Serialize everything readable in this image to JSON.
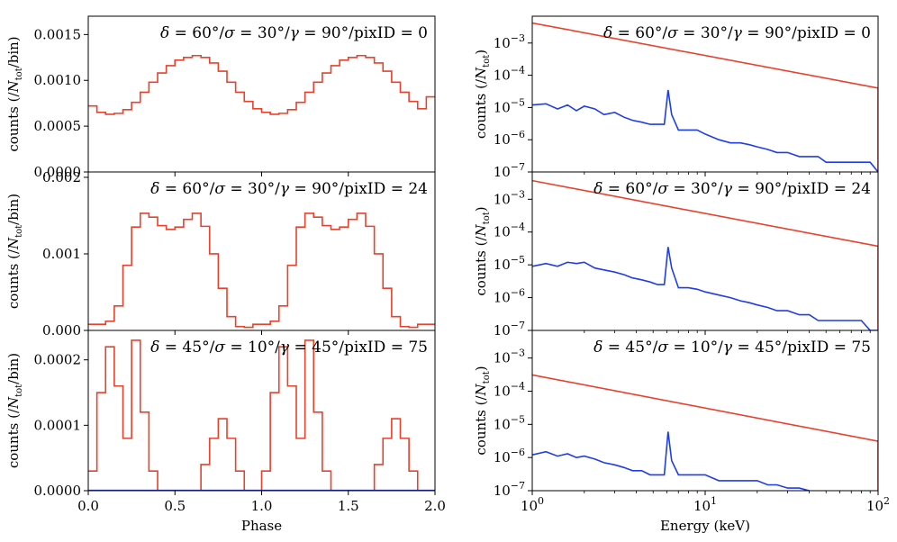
{
  "chart_data": [
    {
      "type": "line",
      "panel": "light-curve-1",
      "title": "δ = 60°/σ = 30°/γ = 90°/pixID = 0",
      "xlabel": "",
      "ylabel": "counts (/N_tot/bin)",
      "ylabel_parts": [
        "counts (/",
        "N",
        "tot",
        "/bin)"
      ],
      "xlim": [
        0.0,
        2.0
      ],
      "ylim": [
        0.0,
        0.0017
      ],
      "yticks": [
        0.0,
        0.0005,
        0.001,
        0.0015
      ],
      "yticklabels": [
        "0.0000",
        "0.0005",
        "0.0010",
        "0.0015"
      ],
      "step": true,
      "series": [
        {
          "color": "#e8412c",
          "values": [
            0.00072,
            0.00065,
            0.00063,
            0.00064,
            0.00068,
            0.00076,
            0.00087,
            0.00098,
            0.00108,
            0.00116,
            0.00122,
            0.00125,
            0.00127,
            0.00125,
            0.00119,
            0.0011,
            0.00098,
            0.00087,
            0.00077,
            0.00069,
            0.00065,
            0.00063,
            0.00064,
            0.00068,
            0.00076,
            0.00087,
            0.00098,
            0.00108,
            0.00116,
            0.00122,
            0.00125,
            0.00127,
            0.00125,
            0.00119,
            0.0011,
            0.00098,
            0.00087,
            0.00077,
            0.00069,
            0.00082
          ]
        }
      ]
    },
    {
      "type": "line",
      "panel": "light-curve-2",
      "title": "δ = 60°/σ = 30°/γ = 90°/pixID = 24",
      "xlabel": "",
      "ylabel": "counts (/N_tot/bin)",
      "ylabel_parts": [
        "counts (/",
        "N",
        "tot",
        "/bin)"
      ],
      "xlim": [
        0.0,
        2.0
      ],
      "ylim": [
        0.0,
        0.00207
      ],
      "yticks": [
        0.0,
        0.001,
        0.002
      ],
      "yticklabels": [
        "0.000",
        "0.001",
        "0.002"
      ],
      "step": true,
      "series": [
        {
          "color": "#e8412c",
          "values": [
            8e-05,
            8e-05,
            0.00012,
            0.00032,
            0.00085,
            0.00135,
            0.00153,
            0.00148,
            0.00137,
            0.00132,
            0.00135,
            0.00145,
            0.00153,
            0.00136,
            0.001,
            0.00055,
            0.00018,
            5e-05,
            4e-05,
            8e-05,
            8e-05,
            0.00012,
            0.00032,
            0.00085,
            0.00135,
            0.00153,
            0.00148,
            0.00137,
            0.00132,
            0.00135,
            0.00145,
            0.00153,
            0.00136,
            0.001,
            0.00055,
            0.00018,
            5e-05,
            4e-05,
            8e-05,
            8e-05
          ]
        }
      ]
    },
    {
      "type": "line",
      "panel": "light-curve-3",
      "title": "δ = 45°/σ = 10°/γ = 45°/pixID = 75",
      "xlabel": "Phase",
      "ylabel": "counts (/N_tot/bin)",
      "ylabel_parts": [
        "counts (/",
        "N",
        "tot",
        "/bin)"
      ],
      "xlim": [
        0.0,
        2.0
      ],
      "ylim": [
        0.0,
        0.000245
      ],
      "xticks": [
        0.0,
        0.5,
        1.0,
        1.5,
        2.0
      ],
      "xticklabels": [
        "0.0",
        "0.5",
        "1.0",
        "1.5",
        "2.0"
      ],
      "yticks": [
        0.0,
        0.0001,
        0.0002
      ],
      "yticklabels": [
        "0.0000",
        "0.0001",
        "0.0002"
      ],
      "step": true,
      "series": [
        {
          "color": "#e8412c",
          "values": [
            3e-05,
            0.00015,
            0.00022,
            0.00016,
            8e-05,
            0.00023,
            0.00012,
            3e-05,
            0.0,
            0.0,
            0.0,
            0.0,
            0.0,
            4e-05,
            8e-05,
            0.00011,
            8e-05,
            3e-05,
            0.0,
            0.0,
            3e-05,
            0.00015,
            0.00022,
            0.00016,
            8e-05,
            0.00023,
            0.00012,
            3e-05,
            0.0,
            0.0,
            0.0,
            0.0,
            0.0,
            4e-05,
            8e-05,
            0.00011,
            8e-05,
            3e-05,
            0.0,
            0.0
          ]
        },
        {
          "color": "#1f3de8",
          "values": [
            5e-07,
            5e-07,
            5e-07,
            5e-07,
            5e-07
          ]
        }
      ]
    },
    {
      "type": "line",
      "panel": "spectrum-1",
      "title": "δ = 60°/σ = 30°/γ = 90°/pixID = 0",
      "xlabel": "",
      "ylabel": "counts (/N_tot)",
      "ylabel_parts": [
        "counts (/",
        "N",
        "tot",
        ")"
      ],
      "xscale": "log",
      "yscale": "log",
      "xlim": [
        1,
        100
      ],
      "ylim": [
        1e-07,
        0.0068
      ],
      "yticks": [
        1e-07,
        1e-06,
        1e-05,
        0.0001,
        0.001
      ],
      "yticklabels": [
        "10^-7",
        "10^-6",
        "10^-5",
        "10^-4",
        "10^-3"
      ],
      "series": [
        {
          "color": "#e8412c",
          "x": [
            1,
            100
          ],
          "values": [
            0.0042,
            4e-05
          ]
        },
        {
          "color": "#1f3de8",
          "x": [
            1.0,
            1.2,
            1.4,
            1.6,
            1.8,
            2.0,
            2.3,
            2.6,
            3.0,
            3.4,
            3.8,
            4.3,
            4.8,
            5.3,
            5.8,
            6.1,
            6.4,
            7.0,
            8.0,
            9.0,
            10,
            12,
            14,
            16,
            18,
            20,
            23,
            26,
            30,
            35,
            40,
            45,
            50,
            60,
            70,
            80,
            90,
            100
          ],
          "values": [
            1.2e-05,
            1.3e-05,
            9e-06,
            1.2e-05,
            8e-06,
            1.1e-05,
            9e-06,
            6e-06,
            7e-06,
            5e-06,
            4e-06,
            3.5e-06,
            3e-06,
            3e-06,
            3e-06,
            3.5e-05,
            6e-06,
            2e-06,
            2e-06,
            2e-06,
            1.5e-06,
            1e-06,
            8e-07,
            8e-07,
            7e-07,
            6e-07,
            5e-07,
            4e-07,
            4e-07,
            3e-07,
            3e-07,
            3e-07,
            2e-07,
            2e-07,
            2e-07,
            2e-07,
            2e-07,
            1e-07
          ]
        }
      ]
    },
    {
      "type": "line",
      "panel": "spectrum-2",
      "title": "δ = 60°/σ = 30°/γ = 90°/pixID = 24",
      "xlabel": "",
      "ylabel": "counts (/N_tot)",
      "ylabel_parts": [
        "counts (/",
        "N",
        "tot",
        ")"
      ],
      "xscale": "log",
      "yscale": "log",
      "xlim": [
        1,
        100
      ],
      "ylim": [
        1e-07,
        0.0068
      ],
      "yticks": [
        1e-07,
        1e-06,
        1e-05,
        0.0001,
        0.001
      ],
      "yticklabels": [
        "10^-7",
        "10^-6",
        "10^-5",
        "10^-4",
        "10^-3"
      ],
      "series": [
        {
          "color": "#e8412c",
          "x": [
            1,
            100
          ],
          "values": [
            0.0037,
            3.7e-05
          ]
        },
        {
          "color": "#1f3de8",
          "x": [
            1.0,
            1.2,
            1.4,
            1.6,
            1.8,
            2.0,
            2.3,
            2.6,
            3.0,
            3.4,
            3.8,
            4.3,
            4.8,
            5.3,
            5.8,
            6.1,
            6.4,
            7.0,
            8.0,
            9.0,
            10,
            12,
            14,
            16,
            18,
            20,
            23,
            26,
            30,
            35,
            40,
            45,
            50,
            60,
            70,
            80,
            90,
            100
          ],
          "values": [
            9e-06,
            1.1e-05,
            9e-06,
            1.2e-05,
            1.1e-05,
            1.2e-05,
            8e-06,
            7e-06,
            6e-06,
            5e-06,
            4e-06,
            3.5e-06,
            3e-06,
            2.5e-06,
            2.5e-06,
            3.5e-05,
            8e-06,
            2e-06,
            2e-06,
            1.8e-06,
            1.5e-06,
            1.2e-06,
            1e-06,
            8e-07,
            7e-07,
            6e-07,
            5e-07,
            4e-07,
            4e-07,
            3e-07,
            3e-07,
            2e-07,
            2e-07,
            2e-07,
            2e-07,
            2e-07,
            1e-07,
            1e-07
          ]
        }
      ]
    },
    {
      "type": "line",
      "panel": "spectrum-3",
      "title": "δ = 45°/σ = 10°/γ = 45°/pixID = 75",
      "xlabel": "Energy (keV)",
      "ylabel": "counts (/N_tot)",
      "ylabel_parts": [
        "counts (/",
        "N",
        "tot",
        ")"
      ],
      "xscale": "log",
      "yscale": "log",
      "xlim": [
        1,
        100
      ],
      "ylim": [
        1e-07,
        0.0068
      ],
      "xticks": [
        1,
        10,
        100
      ],
      "xticklabels": [
        "10^0",
        "10^1",
        "10^2"
      ],
      "yticks": [
        1e-07,
        1e-06,
        1e-05,
        0.0001,
        0.001
      ],
      "yticklabels": [
        "10^-7",
        "10^-6",
        "10^-5",
        "10^-4",
        "10^-3"
      ],
      "series": [
        {
          "color": "#e8412c",
          "x": [
            1,
            100
          ],
          "values": [
            0.00031,
            3.1e-06
          ]
        },
        {
          "color": "#1f3de8",
          "x": [
            1.0,
            1.2,
            1.4,
            1.6,
            1.8,
            2.0,
            2.3,
            2.6,
            3.0,
            3.4,
            3.8,
            4.3,
            4.8,
            5.3,
            5.8,
            6.1,
            6.4,
            7.0,
            8.0,
            9.0,
            10,
            12,
            14,
            16,
            18,
            20,
            23,
            26,
            30,
            35,
            40
          ],
          "values": [
            1.2e-06,
            1.5e-06,
            1.1e-06,
            1.3e-06,
            1e-06,
            1.1e-06,
            9e-07,
            7e-07,
            6e-07,
            5e-07,
            4e-07,
            4e-07,
            3e-07,
            3e-07,
            3e-07,
            6e-06,
            8e-07,
            3e-07,
            3e-07,
            3e-07,
            3e-07,
            2e-07,
            2e-07,
            2e-07,
            2e-07,
            2e-07,
            1.5e-07,
            1.5e-07,
            1.2e-07,
            1.2e-07,
            1e-07
          ]
        }
      ]
    }
  ]
}
